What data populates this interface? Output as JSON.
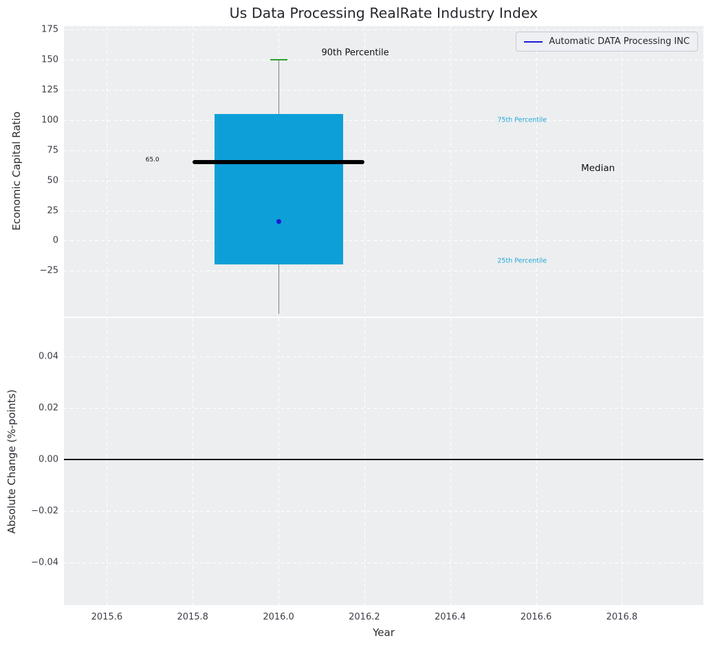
{
  "chart_data": {
    "type": "boxplot",
    "title": "Us Data Processing RealRate Industry Index",
    "xlabel": "Year",
    "xlim": [
      2015.5,
      2016.99
    ],
    "xticks": [
      2015.6,
      2015.8,
      2016.0,
      2016.2,
      2016.4,
      2016.6,
      2016.8
    ],
    "xtick_labels": [
      "2015.6",
      "2015.8",
      "2016.0",
      "2016.2",
      "2016.4",
      "2016.6",
      "2016.8"
    ],
    "grid": "on",
    "colors": {
      "axes_background": "#eceef0",
      "box_fill": "#0d9fd8",
      "median_line": "#000000",
      "whisker": "#808080",
      "cap_90th": "#2ca02c",
      "company_point": "#1a1ad6",
      "percentile_label": "#22a7d6",
      "zero_line": "#000000"
    },
    "panels": [
      {
        "ylabel": "Economic Capital Ratio",
        "ylim": [
          -63,
          178
        ],
        "ytick_values": [
          175,
          150,
          125,
          100,
          75,
          50,
          25,
          0,
          -25
        ],
        "ytick_labels": [
          "175",
          "150",
          "125",
          "100",
          "75",
          "50",
          "25",
          "0",
          "−25"
        ],
        "box": {
          "center_x": 2016.0,
          "left": 2015.85,
          "right": 2016.15,
          "q1": -20,
          "q3": 105,
          "median": 65,
          "median_line_left": 2015.8,
          "median_line_right": 2016.2,
          "whisker_low": -61,
          "whisker_high": 150,
          "cap_half_width": 0.02
        },
        "company_point": {
          "x": 2016.0,
          "y": 16
        },
        "annotations": [
          {
            "text": "65.0",
            "x": 2015.69,
            "y": 67,
            "size": 9,
            "color": "#111111"
          },
          {
            "text": "90th Percentile",
            "x": 2016.1,
            "y": 156,
            "size": 13,
            "color": "#111111"
          },
          {
            "text": "Median",
            "x": 2016.705,
            "y": 60,
            "size": 13.5,
            "color": "#111111"
          },
          {
            "text": "75th Percentile",
            "x": 2016.51,
            "y": 100,
            "size": 9.5,
            "color": "#22a7d6"
          },
          {
            "text": "25th Percentile",
            "x": 2016.51,
            "y": -17,
            "size": 9.5,
            "color": "#22a7d6"
          }
        ],
        "legend": {
          "label": "Automatic DATA Processing INC"
        }
      },
      {
        "ylabel": "Absolute Change (%-points)",
        "ylim": [
          -0.0565,
          0.055
        ],
        "ytick_values": [
          0.04,
          0.02,
          0,
          -0.02,
          -0.04
        ],
        "ytick_labels": [
          "0.04",
          "0.02",
          "0.00",
          "−0.02",
          "−0.04"
        ],
        "zero_line_y": 0
      }
    ]
  }
}
